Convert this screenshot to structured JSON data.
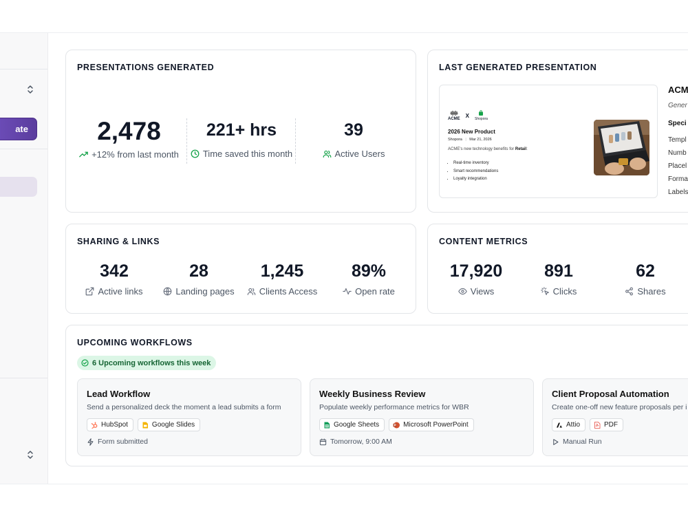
{
  "sidebar": {
    "create_label": "ate"
  },
  "presentations": {
    "title": "PRESENTATIONS GENERATED",
    "stats": [
      {
        "value": "2,478",
        "label": "+12% from last month"
      },
      {
        "value": "221+ hrs",
        "label": "Time saved this month"
      },
      {
        "value": "39",
        "label": "Active Users"
      }
    ]
  },
  "last_generated": {
    "title": "LAST GENERATED PRESENTATION",
    "preview": {
      "brand_a": "ACME",
      "times": "X",
      "brand_b": "Shopora",
      "deck_title": "2026 New Product",
      "meta_brand": "Shopora",
      "meta_sep": "|",
      "meta_date": "Mar 21, 2026",
      "desc_prefix": "ACME's new technology benefits for ",
      "desc_bold": "Retail",
      "desc_suffix": ":",
      "bullets": [
        "Real-time inventory",
        "Smart recommendations",
        "Loyalty integration"
      ]
    },
    "info": {
      "name": "ACM",
      "sub": "Gener",
      "specs_heading": "Speci",
      "rows": [
        "Templ",
        "Numb",
        "Placel",
        "Forma",
        "Labels"
      ]
    }
  },
  "sharing": {
    "title": "SHARING & LINKS",
    "stats": [
      {
        "value": "342",
        "label": "Active links"
      },
      {
        "value": "28",
        "label": "Landing pages"
      },
      {
        "value": "1,245",
        "label": "Clients Access"
      },
      {
        "value": "89%",
        "label": "Open rate"
      }
    ]
  },
  "content": {
    "title": "CONTENT METRICS",
    "stats": [
      {
        "value": "17,920",
        "label": "Views"
      },
      {
        "value": "891",
        "label": "Clicks"
      },
      {
        "value": "62",
        "label": "Shares"
      }
    ]
  },
  "workflows": {
    "title": "UPCOMING WORKFLOWS",
    "badge": "6 Upcoming workflows this week",
    "items": [
      {
        "title": "Lead Workflow",
        "desc": "Send a personalized deck the moment a lead submits a form",
        "tags": [
          "HubSpot",
          "Google Slides"
        ],
        "trigger": "Form submitted"
      },
      {
        "title": "Weekly Business Review",
        "desc": "Populate weekly performance metrics for WBR",
        "tags": [
          "Google Sheets",
          "Microsoft PowerPoint"
        ],
        "trigger": "Tomorrow, 9:00 AM"
      },
      {
        "title": "Client Proposal Automation",
        "desc": "Create one-off new feature proposals per i",
        "tags": [
          "Attio",
          "PDF"
        ],
        "trigger": "Manual Run"
      }
    ]
  },
  "colors": {
    "accent_purple": "#6d4fbf",
    "success_green": "#16a34a",
    "badge_bg": "#dcf6e6"
  },
  "icons": [
    "trending-up-icon",
    "clock-icon",
    "users-icon",
    "external-link-icon",
    "globe-icon",
    "users-icon",
    "activity-icon",
    "eye-icon",
    "cursor-click-icon",
    "share-icon",
    "check-circle-icon",
    "hubspot-icon",
    "google-slides-icon",
    "google-sheets-icon",
    "powerpoint-icon",
    "attio-icon",
    "pdf-icon",
    "zap-icon",
    "calendar-icon",
    "play-icon",
    "chevron-up-down-icon"
  ]
}
